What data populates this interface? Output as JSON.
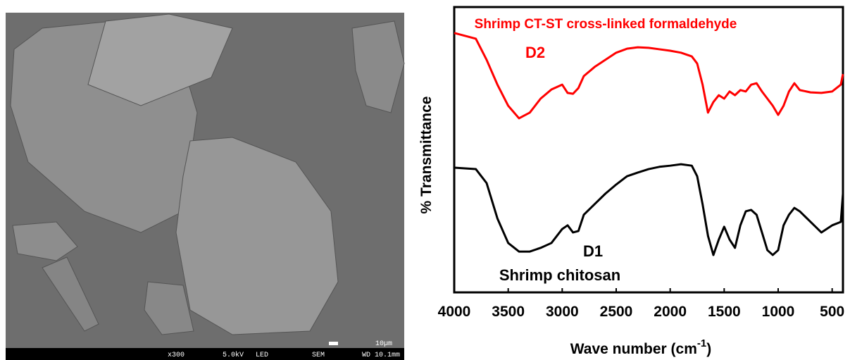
{
  "sem_image": {
    "info_bar": [
      "x300",
      "5.0kV",
      "LED",
      "SEM",
      "WD 10.1mm"
    ],
    "scale_label": "10µm"
  },
  "chart_data": {
    "type": "line",
    "annotations": [
      "Shrimp CT-ST cross-linked formaldehyde",
      "Shrimp chitosan"
    ],
    "y_label": "% Transmittance",
    "x_label": {
      "text": "Wave number (cm",
      "superscript": "-1",
      "suffix": ")"
    },
    "xlim": [
      4000,
      400
    ],
    "ylim": [
      0,
      100
    ],
    "xticks": [
      4000,
      3500,
      3000,
      2500,
      2000,
      1500,
      1000,
      500
    ],
    "x": [
      4000,
      3800,
      3700,
      3600,
      3500,
      3400,
      3300,
      3200,
      3100,
      3000,
      2950,
      2900,
      2850,
      2800,
      2700,
      2600,
      2500,
      2400,
      2300,
      2200,
      2100,
      2000,
      1900,
      1800,
      1750,
      1700,
      1650,
      1600,
      1550,
      1500,
      1450,
      1400,
      1350,
      1300,
      1250,
      1200,
      1150,
      1100,
      1050,
      1000,
      950,
      900,
      850,
      800,
      700,
      600,
      500,
      420,
      400
    ],
    "series": [
      {
        "name": "D2",
        "color": "#ff0000",
        "values": [
          90.9,
          88.9,
          81.5,
          72.8,
          65.4,
          61.0,
          63.0,
          67.9,
          71.1,
          72.8,
          69.9,
          69.6,
          71.6,
          75.8,
          79.0,
          81.5,
          84.0,
          85.4,
          85.9,
          85.7,
          85.2,
          84.7,
          84.0,
          82.7,
          80.2,
          72.8,
          63.0,
          66.7,
          69.1,
          67.9,
          70.4,
          69.1,
          70.9,
          70.4,
          72.8,
          73.3,
          70.4,
          67.9,
          65.4,
          62.2,
          65.4,
          70.4,
          73.3,
          70.9,
          70.1,
          69.9,
          70.4,
          72.8,
          76.5
        ]
      },
      {
        "name": "D1",
        "color": "#000000",
        "values": [
          43.7,
          43.2,
          38.3,
          25.9,
          17.3,
          14.3,
          14.3,
          15.6,
          17.3,
          22.2,
          23.5,
          21.0,
          21.5,
          27.2,
          30.9,
          34.6,
          37.8,
          40.7,
          42.0,
          43.2,
          44.0,
          44.4,
          44.9,
          44.4,
          40.7,
          30.9,
          19.8,
          13.1,
          18.5,
          23.0,
          18.5,
          15.6,
          23.5,
          28.4,
          28.9,
          27.2,
          21.0,
          14.8,
          13.1,
          14.8,
          23.5,
          27.2,
          29.6,
          28.4,
          24.7,
          21.0,
          23.5,
          24.7,
          34.6
        ]
      }
    ]
  }
}
